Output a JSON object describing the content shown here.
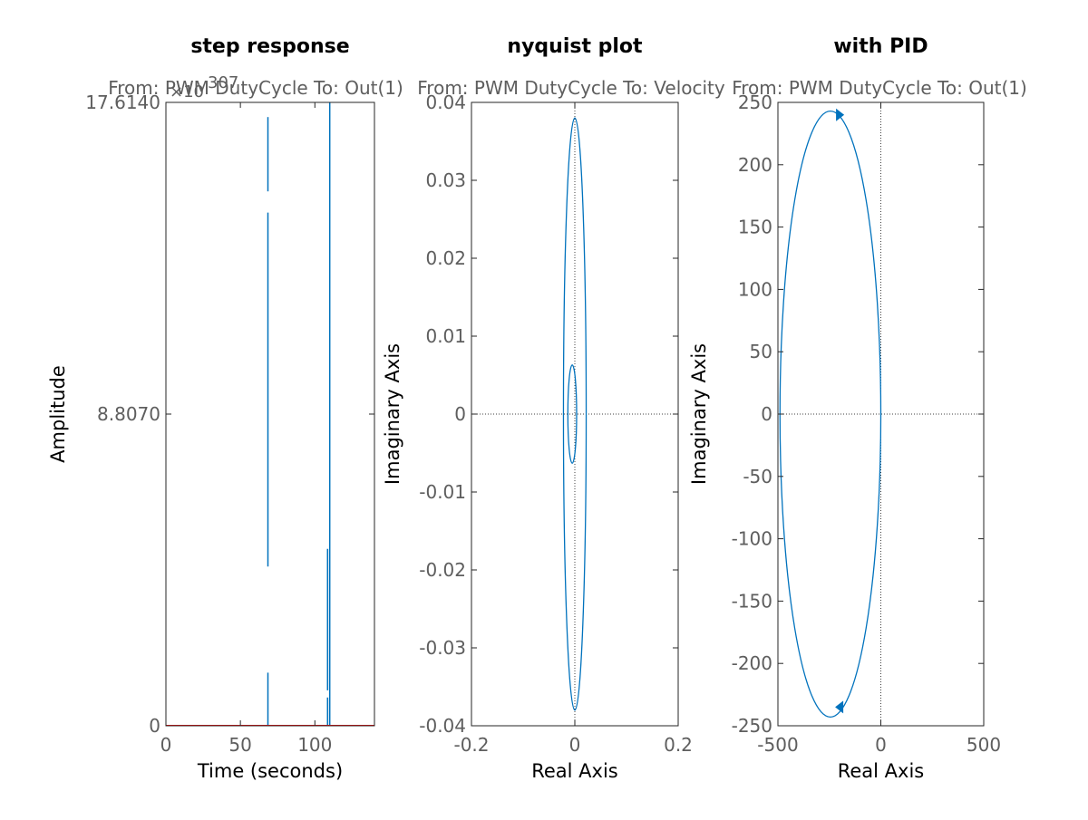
{
  "colors": {
    "series": "#0072bd",
    "step_baseline": "#ff0000",
    "axes": "#262626",
    "text": "#5e5e5e",
    "background": "#ffffff"
  },
  "chart_data": [
    {
      "type": "line",
      "title": "step response",
      "subtitle": "From: PWM DutyCycle  To: Out(1)",
      "xlabel": "Time (seconds)",
      "ylabel": "Amplitude",
      "y_exponent_label": "×10",
      "y_exponent_power": "307",
      "xlim": [
        0,
        140
      ],
      "ylim": [
        0,
        17.614
      ],
      "x_ticks": [
        0,
        50,
        100
      ],
      "x_tick_labels": [
        "0",
        "50",
        "100"
      ],
      "y_ticks": [
        0,
        8.807,
        17.614
      ],
      "y_tick_labels": [
        "0",
        "8.8070",
        "17.6140"
      ],
      "grid": false,
      "series": [
        {
          "color": "#0072bd",
          "segments": [
            [
              [
                68.5,
                0
              ],
              [
                68.5,
                1.5
              ]
            ],
            [
              [
                68.5,
                4.5
              ],
              [
                68.5,
                14.5
              ]
            ],
            [
              [
                68.5,
                15.1
              ],
              [
                68.5,
                17.2
              ]
            ],
            [
              [
                108.5,
                0
              ],
              [
                108.5,
                0.8
              ]
            ],
            [
              [
                108.5,
                1.0
              ],
              [
                108.5,
                5.0
              ]
            ],
            [
              [
                110.0,
                0
              ],
              [
                110.0,
                17.614
              ]
            ]
          ]
        },
        {
          "color": "#ff0000",
          "segments": [
            [
              [
                0,
                0
              ],
              [
                140,
                0
              ]
            ]
          ]
        }
      ]
    },
    {
      "type": "line",
      "title": "nyquist plot",
      "subtitle": "From: PWM DutyCycle  To: Velocity",
      "xlabel": "Real Axis",
      "ylabel": "Imaginary Axis",
      "xlim": [
        -0.2,
        0.2
      ],
      "ylim": [
        -0.04,
        0.04
      ],
      "x_ticks": [
        -0.2,
        0,
        0.2
      ],
      "x_tick_labels": [
        "-0.2",
        "0",
        "0.2"
      ],
      "y_ticks": [
        -0.04,
        -0.03,
        -0.02,
        -0.01,
        0,
        0.01,
        0.02,
        0.03,
        0.04
      ],
      "y_tick_labels": [
        "-0.04",
        "-0.03",
        "-0.02",
        "-0.01",
        "0",
        "0.01",
        "0.02",
        "0.03",
        "0.04"
      ],
      "grid": false,
      "reference_lines": {
        "x0": true,
        "y0": true
      },
      "series": [
        {
          "color": "#0072bd",
          "curves": [
            {
              "shape": "ellipse",
              "cx": 0.0,
              "cy": 0.0,
              "rx": 0.022,
              "ry": 0.038
            },
            {
              "shape": "ellipse",
              "cx": -0.005,
              "cy": 0.0,
              "rx": 0.0085,
              "ry": 0.0063
            }
          ]
        }
      ]
    },
    {
      "type": "line",
      "title": "with PID",
      "subtitle": "From: PWM DutyCycle  To: Out(1)",
      "xlabel": "Real Axis",
      "ylabel": "Imaginary Axis",
      "xlim": [
        -500,
        500
      ],
      "ylim": [
        -250,
        250
      ],
      "x_ticks": [
        -500,
        0,
        500
      ],
      "x_tick_labels": [
        "-500",
        "0",
        "500"
      ],
      "y_ticks": [
        -250,
        -200,
        -150,
        -100,
        -50,
        0,
        50,
        100,
        150,
        200,
        250
      ],
      "y_tick_labels": [
        "-250",
        "-200",
        "-150",
        "-100",
        "-50",
        "0",
        "50",
        "100",
        "150",
        "200",
        "250"
      ],
      "grid": false,
      "reference_lines": {
        "x0": true,
        "y0": true
      },
      "series": [
        {
          "color": "#0072bd",
          "curves": [
            {
              "shape": "ellipse",
              "cx": -245,
              "cy": 0,
              "rx": 245,
              "ry": 243
            }
          ],
          "arrows": [
            {
              "x": -200,
              "y": 240,
              "direction": "right"
            },
            {
              "x": -200,
              "y": -235,
              "direction": "left"
            }
          ]
        }
      ]
    }
  ]
}
